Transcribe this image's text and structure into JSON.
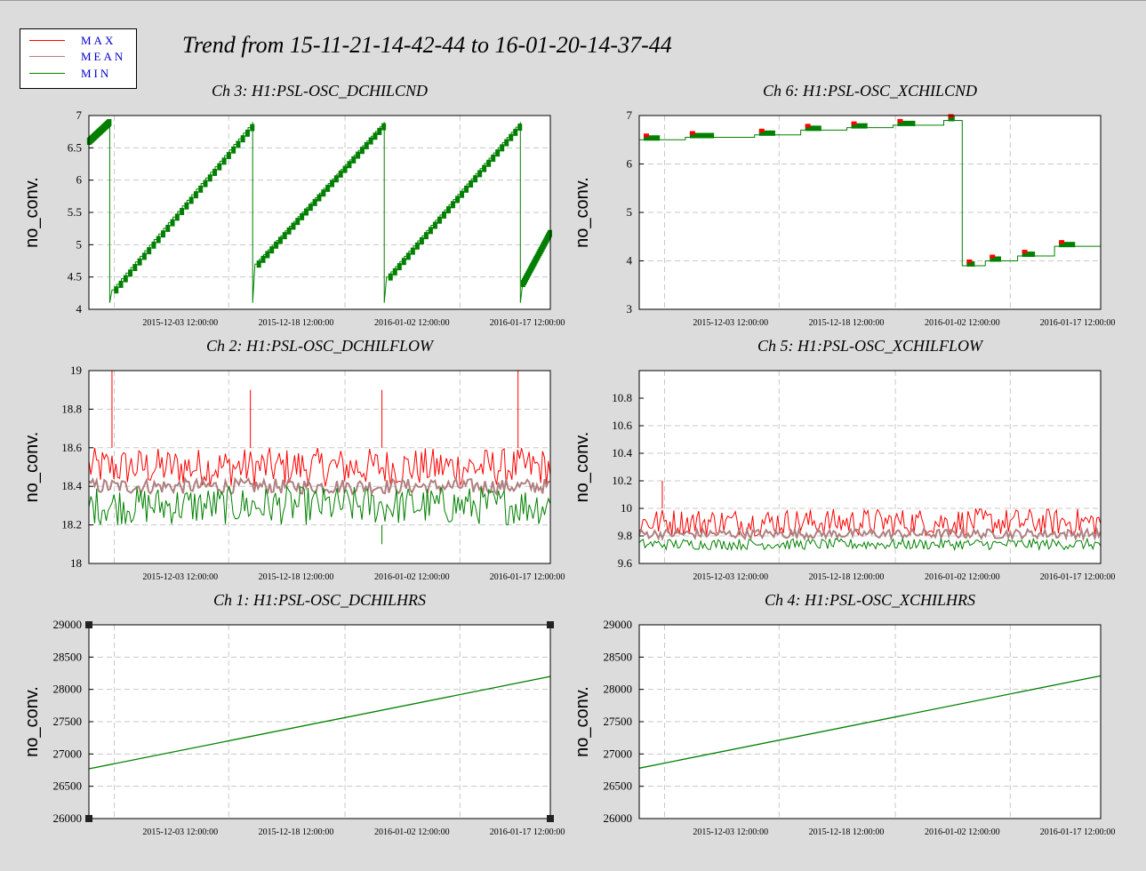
{
  "title": "Trend from 15-11-21-14-42-44 to 16-01-20-14-37-44",
  "legend": [
    {
      "label": "MAX",
      "color": "#ff0000"
    },
    {
      "label": "MEAN",
      "color": "#b08080"
    },
    {
      "label": "MIN",
      "color": "#008000"
    }
  ],
  "chart_data": [
    {
      "type": "line",
      "title": "Ch 3: H1:PSL-OSC_DCHILCND",
      "ylabel": "no_conv.",
      "xlabel": "",
      "xticks": [
        "2015-12-03 12:00:00",
        "2015-12-18 12:00:00",
        "2016-01-02 12:00:00",
        "2016-01-17 12:00:00"
      ],
      "ylim": [
        4,
        7
      ],
      "yticks": [
        "4",
        "4.5",
        "5",
        "5.5",
        "6",
        "6.5",
        "7"
      ],
      "pattern": "sawtooth",
      "series": [
        {
          "name": "MIN",
          "x": [
            0.0,
            0.04,
            0.045,
            0.05,
            0.33,
            0.35,
            0.355,
            0.62,
            0.635,
            0.64,
            0.92,
            0.93,
            0.935,
            1.0
          ],
          "values": [
            6.6,
            6.9,
            4.1,
            4.3,
            6.85,
            6.9,
            4.1,
            6.85,
            6.9,
            4.1,
            6.9,
            6.9,
            4.1,
            5.2
          ]
        }
      ]
    },
    {
      "type": "line",
      "title": "Ch 6: H1:PSL-OSC_XCHILCND",
      "ylabel": "no_conv.",
      "xlabel": "",
      "xticks": [
        "2015-12-03 12:00:00",
        "2015-12-18 12:00:00",
        "2016-01-02 12:00:00",
        "2016-01-17 12:00:00"
      ],
      "ylim": [
        3,
        7
      ],
      "yticks": [
        "3",
        "4",
        "5",
        "6",
        "7"
      ],
      "pattern": "step",
      "series": [
        {
          "name": "MIN",
          "x": [
            0.0,
            0.1,
            0.25,
            0.35,
            0.45,
            0.55,
            0.66,
            0.7,
            0.75,
            0.82,
            0.9,
            1.0
          ],
          "values": [
            6.5,
            6.55,
            6.6,
            6.7,
            6.75,
            6.8,
            6.9,
            3.9,
            4.0,
            4.1,
            4.3,
            4.4
          ]
        }
      ]
    },
    {
      "type": "line",
      "title": "Ch 2: H1:PSL-OSC_DCHILFLOW",
      "ylabel": "no_conv.",
      "xlabel": "",
      "xticks": [
        "2015-12-03 12:00:00",
        "2015-12-18 12:00:00",
        "2016-01-02 12:00:00",
        "2016-01-17 12:00:00"
      ],
      "ylim": [
        18,
        19
      ],
      "yticks": [
        "18",
        "18.2",
        "18.4",
        "18.6",
        "18.8",
        "19"
      ],
      "pattern": "noisy",
      "series": [
        {
          "name": "MAX",
          "values_range": [
            18.4,
            18.6
          ],
          "spikes": [
            19.0,
            18.9,
            18.9,
            19.0
          ]
        },
        {
          "name": "MEAN",
          "values_range": [
            18.36,
            18.44
          ]
        },
        {
          "name": "MIN",
          "values_range": [
            18.2,
            18.4
          ],
          "dips": [
            18.1
          ]
        }
      ]
    },
    {
      "type": "line",
      "title": "Ch 5: H1:PSL-OSC_XCHILFLOW",
      "ylabel": "no_conv.",
      "xlabel": "",
      "xticks": [
        "2015-12-03 12:00:00",
        "2015-12-18 12:00:00",
        "2016-01-02 12:00:00",
        "2016-01-17 12:00:00"
      ],
      "ylim": [
        9.6,
        11.0
      ],
      "yticks": [
        "9.6",
        "9.8",
        "10",
        "10.2",
        "10.4",
        "10.6",
        "10.8"
      ],
      "pattern": "noisy",
      "series": [
        {
          "name": "MAX",
          "values_range": [
            9.8,
            10.0
          ],
          "spikes": [
            10.2
          ]
        },
        {
          "name": "MEAN",
          "values_range": [
            9.78,
            9.85
          ]
        },
        {
          "name": "MIN",
          "values_range": [
            9.7,
            9.78
          ]
        }
      ]
    },
    {
      "type": "line",
      "title": "Ch 1: H1:PSL-OSC_DCHILHRS",
      "ylabel": "no_conv.",
      "xlabel": "",
      "xticks": [
        "2015-12-03 12:00:00",
        "2015-12-18 12:00:00",
        "2016-01-02 12:00:00",
        "2016-01-17 12:00:00"
      ],
      "ylim": [
        26000,
        29000
      ],
      "yticks": [
        "26000",
        "26500",
        "27000",
        "27500",
        "28000",
        "28500",
        "29000"
      ],
      "pattern": "linear",
      "selected": true,
      "series": [
        {
          "name": "MIN",
          "x": [
            0,
            1
          ],
          "values": [
            26770,
            28200
          ]
        }
      ]
    },
    {
      "type": "line",
      "title": "Ch 4: H1:PSL-OSC_XCHILHRS",
      "ylabel": "no_conv.",
      "xlabel": "",
      "xticks": [
        "2015-12-03 12:00:00",
        "2015-12-18 12:00:00",
        "2016-01-02 12:00:00",
        "2016-01-17 12:00:00"
      ],
      "ylim": [
        26000,
        29000
      ],
      "yticks": [
        "26000",
        "26500",
        "27000",
        "27500",
        "28000",
        "28500",
        "29000"
      ],
      "pattern": "linear",
      "series": [
        {
          "name": "MIN",
          "x": [
            0,
            1
          ],
          "values": [
            26780,
            28210
          ]
        }
      ]
    }
  ]
}
